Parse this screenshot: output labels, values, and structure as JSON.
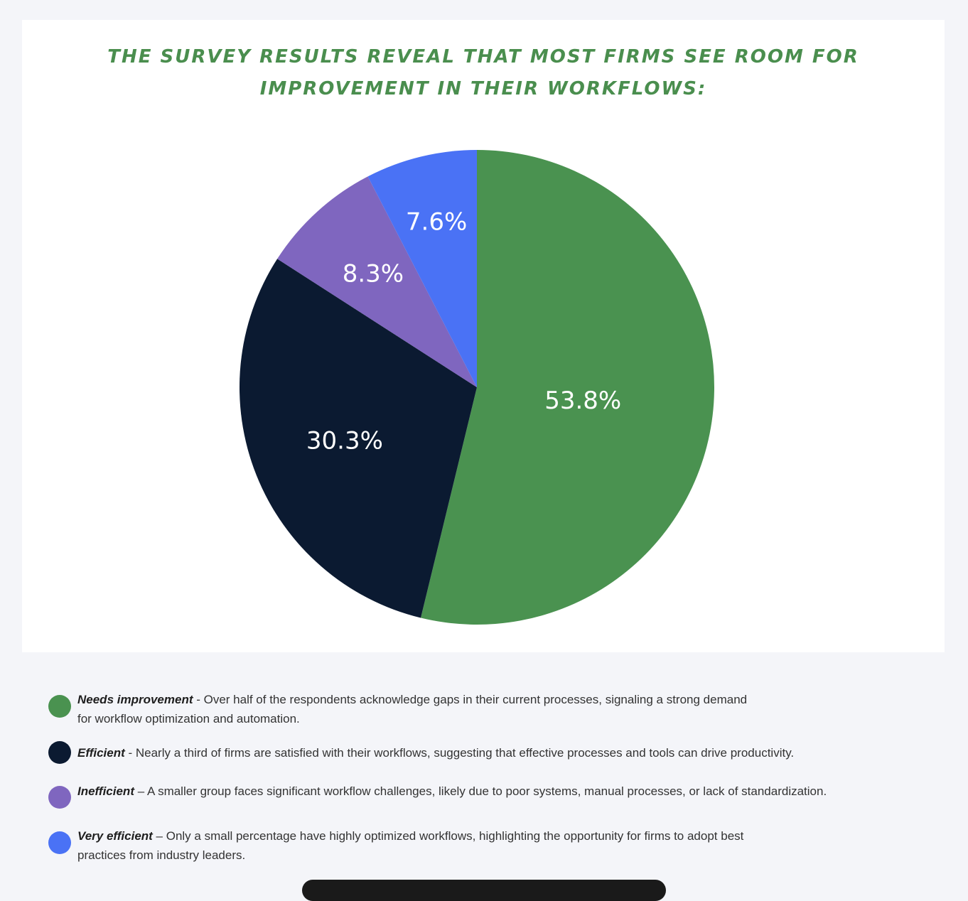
{
  "title": {
    "line1": "THE SURVEY RESULTS REVEAL THAT MOST FIRMS SEE ROOM FOR",
    "line2": "IMPROVEMENT IN THEIR WORKFLOWS:",
    "color": "#4a8e4e"
  },
  "chart_data": {
    "type": "pie",
    "title": "THE SURVEY RESULTS REVEAL THAT MOST FIRMS SEE ROOM FOR IMPROVEMENT IN THEIR WORKFLOWS:",
    "start": "12 o'clock",
    "direction": "clockwise",
    "slices": [
      {
        "name": "Needs improvement",
        "value": 53.8,
        "label": "53.8%",
        "color": "#4a9250"
      },
      {
        "name": "Efficient",
        "value": 30.3,
        "label": "30.3%",
        "color": "#0b1a31"
      },
      {
        "name": "Inefficient",
        "value": 8.3,
        "label": "8.3%",
        "color": "#7f66bf"
      },
      {
        "name": "Very efficient",
        "value": 7.6,
        "label": "7.6%",
        "color": "#4a72f5"
      }
    ]
  },
  "legend": [
    {
      "term": "Needs improvement",
      "text": " - Over half of the respondents acknowledge gaps in their current processes, signaling a strong demand",
      "text2": "for workflow optimization and automation.",
      "color": "#4a9250"
    },
    {
      "term": "Efficient",
      "text": " - Nearly a third of firms are satisfied with their workflows, suggesting that effective processes and tools can drive productivity.",
      "text2": "",
      "color": "#0b1a31"
    },
    {
      "term": "Inefficient",
      "text": "  – A smaller group faces significant workflow challenges, likely due to poor systems, manual processes, or lack of standardization.",
      "text2": "",
      "color": "#7f66bf"
    },
    {
      "term": "Very efficient",
      "text": " – Only a small percentage have highly optimized workflows, highlighting the opportunity for firms to adopt best",
      "text2": "practices from industry leaders.",
      "color": "#4a72f5"
    }
  ]
}
